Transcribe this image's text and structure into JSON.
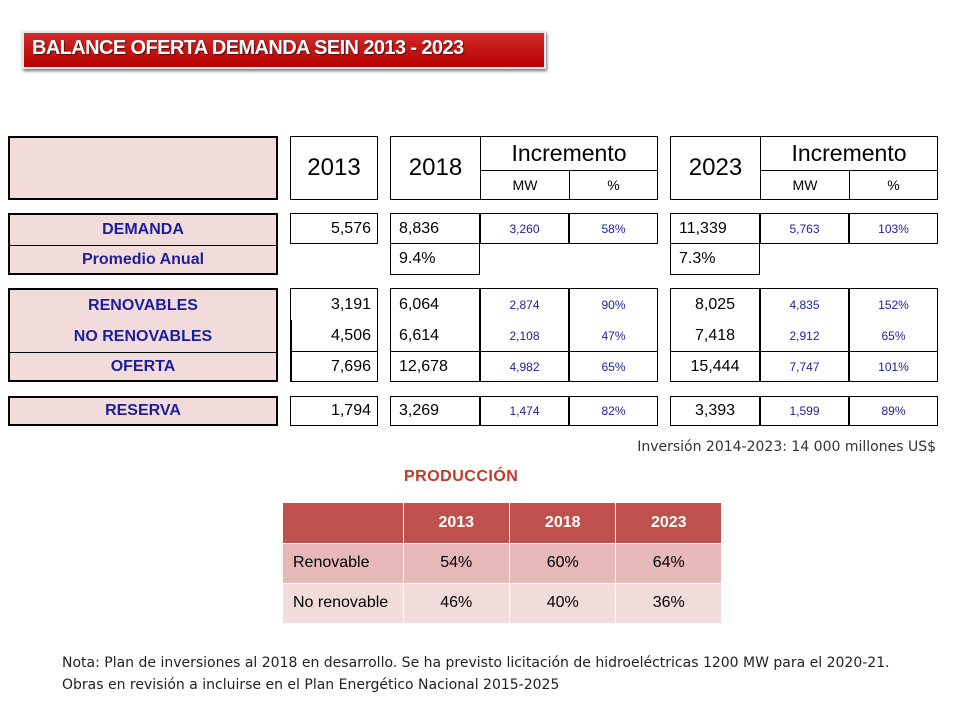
{
  "title": "BALANCE OFERTA DEMANDA SEIN 2013 - 2023",
  "header": {
    "y2013": "2013",
    "y2018": "2018",
    "y2023": "2023",
    "incremento": "Incremento",
    "mw": "MW",
    "pct": "%"
  },
  "labels": {
    "demanda": "DEMANDA",
    "promedio": "Promedio Anual",
    "renovables": "RENOVABLES",
    "no_renovables": "NO RENOVABLES",
    "oferta": "OFERTA",
    "reserva": "RESERVA"
  },
  "values": {
    "demanda": {
      "y2013": "5,576",
      "y2018": "8,836",
      "inc18_mw": "3,260",
      "inc18_pct": "58%",
      "y2023": "11,339",
      "inc23_mw": "5,763",
      "inc23_pct": "103%"
    },
    "promedio": {
      "y2018": "9.4%",
      "y2023": "7.3%"
    },
    "renovables": {
      "y2013": "3,191",
      "y2018": "6,064",
      "inc18_mw": "2,874",
      "inc18_pct": "90%",
      "y2023": "8,025",
      "inc23_mw": "4,835",
      "inc23_pct": "152%"
    },
    "no_renovables": {
      "y2013": "4,506",
      "y2018": "6,614",
      "inc18_mw": "2,108",
      "inc18_pct": "47%",
      "y2023": "7,418",
      "inc23_mw": "2,912",
      "inc23_pct": "65%"
    },
    "oferta": {
      "y2013": "7,696",
      "y2018": "12,678",
      "inc18_mw": "4,982",
      "inc18_pct": "65%",
      "y2023": "15,444",
      "inc23_mw": "7,747",
      "inc23_pct": "101%"
    },
    "reserva": {
      "y2013": "1,794",
      "y2018": "3,269",
      "inc18_mw": "1,474",
      "inc18_pct": "82%",
      "y2023": "3,393",
      "inc23_mw": "1,599",
      "inc23_pct": "89%"
    }
  },
  "inversion": "Inversión 2014-2023: 14 000 millones US$",
  "produccion": {
    "title": "PRODUCCIÓN",
    "headers": [
      "",
      "2013",
      "2018",
      "2023"
    ],
    "rows": [
      {
        "label": "Renovable",
        "v2013": "54%",
        "v2018": "60%",
        "v2023": "64%"
      },
      {
        "label": "No renovable",
        "v2013": "46%",
        "v2018": "40%",
        "v2023": "36%"
      }
    ]
  },
  "nota": "Nota: Plan de inversiones al 2018 en desarrollo. Se ha previsto licitación  de hidroeléctricas 1200 MW para el 2020-21. Obras en revisión a incluirse en el Plan Energético Nacional 2015-2025",
  "colors": {
    "banner": "#c00000",
    "label_fill": "#f2dcdb",
    "label_text": "#1e1e9a",
    "table_header": "#c0504d",
    "row1": "#e6b9b8",
    "row2": "#f2dcdb",
    "accent_title": "#c0392b"
  }
}
